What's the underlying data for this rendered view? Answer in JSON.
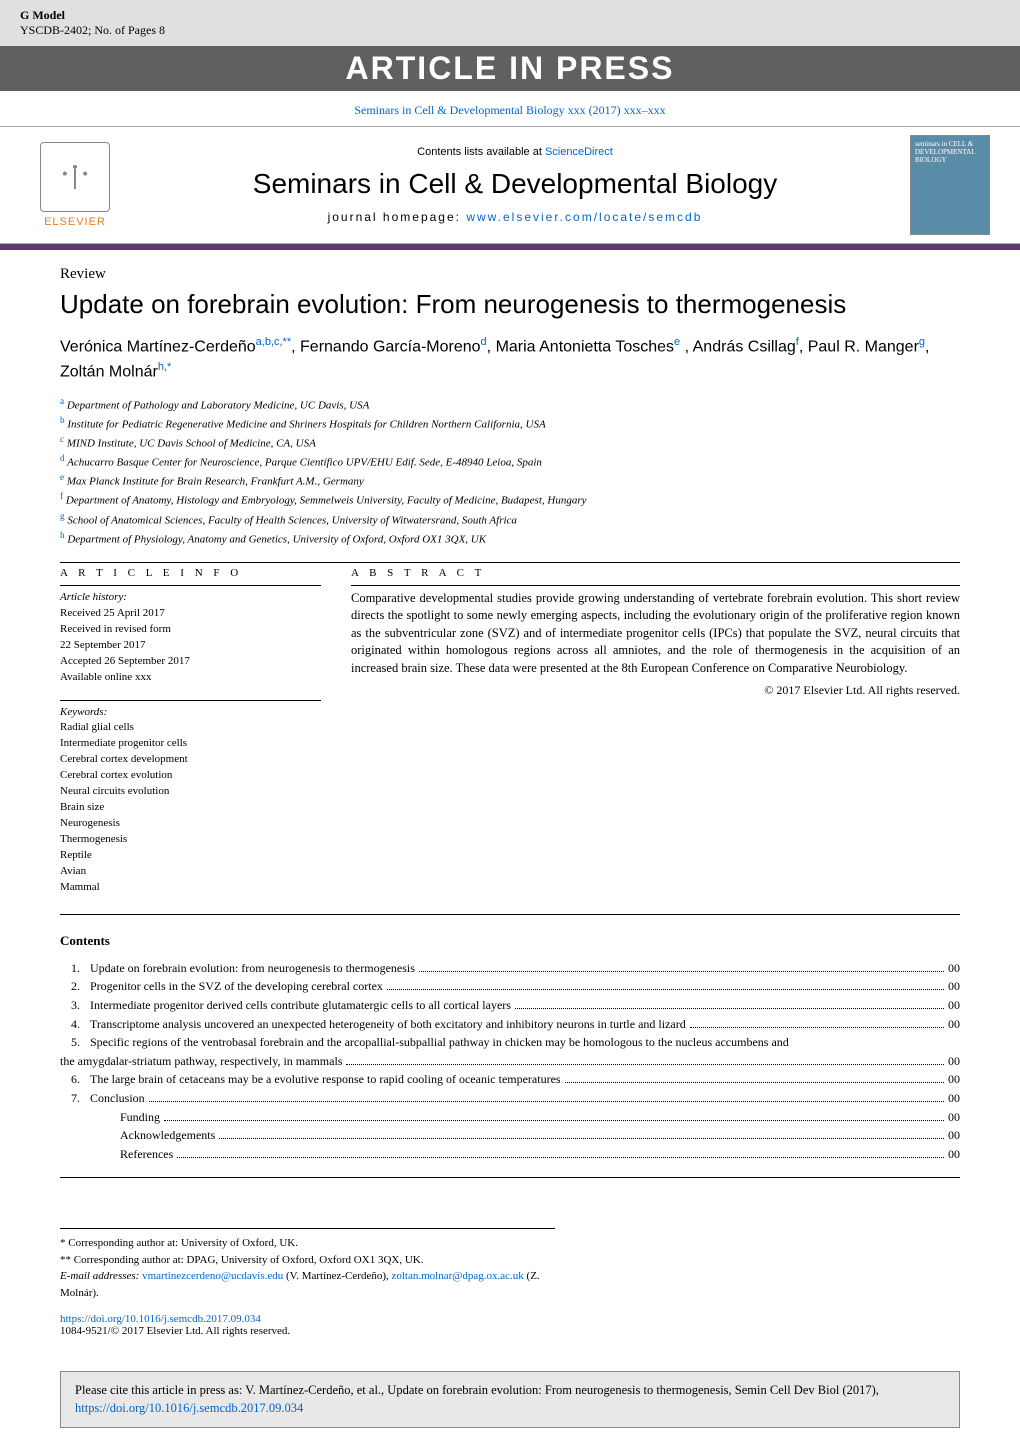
{
  "header": {
    "gmodel": "G Model",
    "serial": "YSCDB-2402;   No. of Pages 8",
    "press_banner": "ARTICLE IN PRESS",
    "citation": "Seminars in Cell & Developmental Biology xxx (2017) xxx–xxx"
  },
  "masthead": {
    "elsevier": "ELSEVIER",
    "contents_available": "Contents lists available at",
    "sciencedirect": "ScienceDirect",
    "journal_title": "Seminars in Cell & Developmental Biology",
    "homepage_label": "journal homepage:",
    "homepage_url": "www.elsevier.com/locate/semcdb",
    "cover_text": "seminars in CELL & DEVELOPMENTAL BIOLOGY"
  },
  "article": {
    "type": "Review",
    "title": "Update on forebrain evolution: From neurogenesis to thermogenesis"
  },
  "authors_html": "Verónica Martínez-Cerdeño<sup>a,b,c,**</sup>, Fernando García-Moreno<sup>d</sup>, Maria Antonietta Tosches<sup>e</sup> , András Csillag<sup>f</sup>, Paul R. Manger<sup>g</sup>, Zoltán Molnár<sup>h,*</sup>",
  "affiliations": [
    {
      "sup": "a",
      "text": "Department of Pathology and Laboratory Medicine, UC Davis, USA"
    },
    {
      "sup": "b",
      "text": "Institute for Pediatric Regenerative Medicine and Shriners Hospitals for Children Northern California, USA"
    },
    {
      "sup": "c",
      "text": "MIND Institute, UC Davis School of Medicine, CA, USA"
    },
    {
      "sup": "d",
      "text": "Achucarro Basque Center for Neuroscience, Parque Científico UPV/EHU Edif. Sede, E-48940 Leioa, Spain"
    },
    {
      "sup": "e",
      "text": "Max Planck Institute for Brain Research, Frankfurt A.M., Germany"
    },
    {
      "sup": "f",
      "text": "Department of Anatomy, Histology and Embryology, Semmelweis University, Faculty of Medicine, Budapest, Hungary"
    },
    {
      "sup": "g",
      "text": "School of Anatomical Sciences, Faculty of Health Sciences, University of Witwatersrand, South Africa"
    },
    {
      "sup": "h",
      "text": "Department of Physiology, Anatomy and Genetics, University of Oxford, Oxford OX1 3QX, UK"
    }
  ],
  "info": {
    "heading": "A R T I C L E   I N F O",
    "history_label": "Article history:",
    "history": [
      "Received 25 April 2017",
      "Received in revised form",
      "22 September 2017",
      "Accepted 26 September 2017",
      "Available online xxx"
    ],
    "keywords_label": "Keywords:",
    "keywords": [
      "Radial glial cells",
      "Intermediate progenitor cells",
      "Cerebral cortex development",
      "Cerebral cortex evolution",
      "Neural circuits evolution",
      "Brain size",
      "Neurogenesis",
      "Thermogenesis",
      "Reptile",
      "Avian",
      "Mammal"
    ]
  },
  "abstract": {
    "heading": "A B S T R A C T",
    "text": "Comparative developmental studies provide growing understanding of vertebrate forebrain evolution. This short review directs the spotlight to some newly emerging aspects, including the evolutionary origin of the proliferative region known as the subventricular zone (SVZ) and of intermediate progenitor cells (IPCs) that populate the SVZ, neural circuits that originated within homologous regions across all amniotes, and the role of thermogenesis in the acquisition of an increased brain size. These data were presented at the 8th European Conference on Comparative Neurobiology.",
    "copyright": "© 2017 Elsevier Ltd. All rights reserved."
  },
  "contents": {
    "title": "Contents",
    "items": [
      {
        "num": "1.",
        "label": "Update on forebrain evolution: from neurogenesis to thermogenesis",
        "page": "00"
      },
      {
        "num": "2.",
        "label": "Progenitor cells in the SVZ of the developing cerebral cortex",
        "page": "00"
      },
      {
        "num": "3.",
        "label": "Intermediate progenitor derived cells contribute glutamatergic cells to all cortical layers",
        "page": "00"
      },
      {
        "num": "4.",
        "label": "Transcriptome analysis uncovered an unexpected heterogeneity of both excitatory and inhibitory neurons in turtle and lizard",
        "page": "00"
      },
      {
        "num": "5.",
        "label": "Specific regions of the ventrobasal forebrain and the arcopallial-subpallial pathway in chicken may be homologous to the nucleus accumbens and the amygdalar-striatum pathway, respectively, in mammals",
        "page": "00",
        "wrap": true
      },
      {
        "num": "6.",
        "label": "The large brain of cetaceans may be a evolutive response to rapid cooling of oceanic temperatures",
        "page": "00"
      },
      {
        "num": "7.",
        "label": "Conclusion",
        "page": "00"
      },
      {
        "num": "",
        "label": "Funding",
        "page": "00",
        "indent": true
      },
      {
        "num": "",
        "label": "Acknowledgements",
        "page": "00",
        "indent": true
      },
      {
        "num": "",
        "label": "References",
        "page": "00",
        "indent": true
      }
    ]
  },
  "footnotes": {
    "star1": "* Corresponding author at: University of Oxford, UK.",
    "star2": "** Corresponding author at: DPAG, University of Oxford, Oxford OX1 3QX, UK.",
    "email_label": "E-mail addresses:",
    "email1": "vmartinezcerdeno@ucdavis.edu",
    "email1_person": "(V. Martínez-Cerdeño),",
    "email2": "zoltan.molnar@dpag.ox.ac.uk",
    "email2_person": "(Z. Molnár)."
  },
  "doi": {
    "url": "https://doi.org/10.1016/j.semcdb.2017.09.034",
    "issn": "1084-9521/© 2017 Elsevier Ltd. All rights reserved."
  },
  "citebox": {
    "prefix": "Please cite this article in press as: V. Martínez-Cerdeño, et al., Update on forebrain evolution: From neurogenesis to thermogenesis, Semin Cell Dev Biol (2017),",
    "url": "https://doi.org/10.1016/j.semcdb.2017.09.034"
  }
}
